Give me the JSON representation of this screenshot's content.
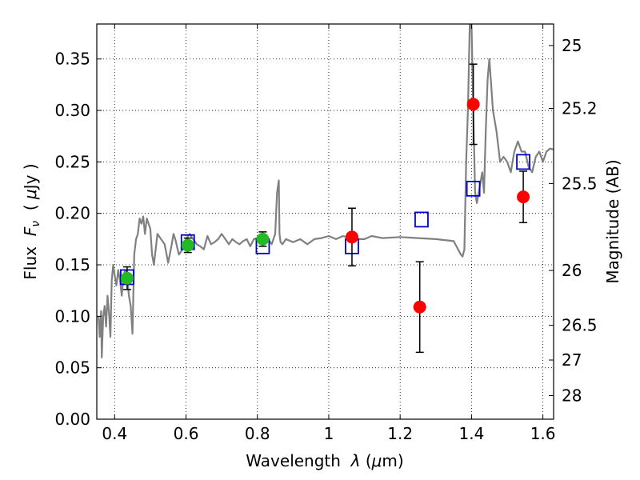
{
  "chart_data": {
    "type": "scatter",
    "title": "",
    "xlabel": "Wavelength  λ (μm)",
    "ylabel": "Flux  F_ν  ( μJy )",
    "ylabel_right": "Magnitude (AB)",
    "xlim": [
      0.35,
      1.63
    ],
    "ylim": [
      0.0,
      0.384
    ],
    "grid": true,
    "x_ticks": [
      0.4,
      0.6,
      0.8,
      1.0,
      1.2,
      1.4,
      1.6
    ],
    "x_tick_labels": [
      "0.4",
      "0.6",
      "0.8",
      "1",
      "1.2",
      "1.4",
      "1.6"
    ],
    "y_ticks": [
      0.0,
      0.05,
      0.1,
      0.15,
      0.2,
      0.25,
      0.3,
      0.35
    ],
    "y_tick_labels": [
      "0.00",
      "0.05",
      "0.10",
      "0.15",
      "0.20",
      "0.25",
      "0.30",
      "0.35"
    ],
    "right_ticks": [
      {
        "label": "25",
        "flux": 0.3631
      },
      {
        "label": "25.2",
        "flux": 0.302
      },
      {
        "label": "25.5",
        "flux": 0.229
      },
      {
        "label": "26",
        "flux": 0.1445
      },
      {
        "label": "26.5",
        "flux": 0.0912
      },
      {
        "label": "27",
        "flux": 0.0575
      },
      {
        "label": "28",
        "flux": 0.0229
      }
    ],
    "series": [
      {
        "kind": "line",
        "color": "#808080",
        "x": [
          0.355,
          0.358,
          0.362,
          0.364,
          0.368,
          0.372,
          0.376,
          0.38,
          0.385,
          0.388,
          0.392,
          0.396,
          0.4,
          0.405,
          0.41,
          0.415,
          0.42,
          0.425,
          0.43,
          0.435,
          0.44,
          0.445,
          0.45,
          0.455,
          0.46,
          0.465,
          0.47,
          0.475,
          0.48,
          0.485,
          0.49,
          0.495,
          0.5,
          0.505,
          0.51,
          0.52,
          0.53,
          0.54,
          0.55,
          0.56,
          0.565,
          0.57,
          0.58,
          0.59,
          0.6,
          0.61,
          0.62,
          0.63,
          0.64,
          0.65,
          0.66,
          0.67,
          0.68,
          0.69,
          0.7,
          0.71,
          0.72,
          0.73,
          0.74,
          0.75,
          0.76,
          0.77,
          0.78,
          0.79,
          0.8,
          0.81,
          0.82,
          0.83,
          0.84,
          0.85,
          0.855,
          0.86,
          0.862,
          0.865,
          0.87,
          0.88,
          0.9,
          0.92,
          0.94,
          0.96,
          0.98,
          1.0,
          1.02,
          1.04,
          1.06,
          1.08,
          1.1,
          1.12,
          1.15,
          1.2,
          1.25,
          1.3,
          1.35,
          1.37,
          1.375,
          1.38,
          1.385,
          1.39,
          1.395,
          1.4,
          1.405,
          1.41,
          1.415,
          1.42,
          1.425,
          1.43,
          1.435,
          1.44,
          1.445,
          1.45,
          1.46,
          1.47,
          1.48,
          1.49,
          1.5,
          1.51,
          1.52,
          1.53,
          1.54,
          1.55,
          1.56,
          1.57,
          1.58,
          1.59,
          1.6,
          1.61,
          1.62,
          1.63
        ],
        "y": [
          0.1,
          0.08,
          0.105,
          0.06,
          0.1,
          0.11,
          0.09,
          0.12,
          0.1,
          0.08,
          0.135,
          0.15,
          0.14,
          0.13,
          0.145,
          0.135,
          0.12,
          0.14,
          0.145,
          0.14,
          0.12,
          0.11,
          0.083,
          0.16,
          0.175,
          0.18,
          0.195,
          0.19,
          0.197,
          0.18,
          0.195,
          0.19,
          0.185,
          0.16,
          0.15,
          0.18,
          0.175,
          0.17,
          0.152,
          0.17,
          0.18,
          0.175,
          0.16,
          0.165,
          0.175,
          0.18,
          0.175,
          0.17,
          0.168,
          0.165,
          0.178,
          0.17,
          0.172,
          0.175,
          0.18,
          0.175,
          0.17,
          0.175,
          0.172,
          0.17,
          0.173,
          0.175,
          0.168,
          0.175,
          0.176,
          0.175,
          0.172,
          0.175,
          0.17,
          0.18,
          0.22,
          0.232,
          0.18,
          0.172,
          0.17,
          0.175,
          0.172,
          0.175,
          0.17,
          0.175,
          0.176,
          0.178,
          0.175,
          0.178,
          0.176,
          0.175,
          0.175,
          0.178,
          0.176,
          0.177,
          0.176,
          0.175,
          0.173,
          0.16,
          0.158,
          0.165,
          0.25,
          0.3,
          0.384,
          0.384,
          0.3,
          0.22,
          0.21,
          0.22,
          0.23,
          0.24,
          0.22,
          0.28,
          0.33,
          0.35,
          0.3,
          0.28,
          0.25,
          0.255,
          0.25,
          0.24,
          0.26,
          0.27,
          0.26,
          0.26,
          0.245,
          0.24,
          0.255,
          0.26,
          0.25,
          0.26,
          0.263,
          0.262
        ]
      },
      {
        "kind": "open-square",
        "color": "#0000cc",
        "x": [
          0.435,
          0.605,
          0.815,
          1.065,
          1.26,
          1.405,
          1.545
        ],
        "y": [
          0.138,
          0.172,
          0.168,
          0.168,
          0.194,
          0.224,
          0.25
        ]
      },
      {
        "kind": "filled-circle",
        "color": "#22bb22",
        "x": [
          0.435,
          0.605,
          0.815
        ],
        "y": [
          0.137,
          0.169,
          0.175
        ],
        "err": [
          0.011,
          0.007,
          0.007
        ]
      },
      {
        "kind": "filled-circle",
        "color": "#ff0000",
        "x": [
          1.065,
          1.255,
          1.405,
          1.545
        ],
        "y": [
          0.177,
          0.109,
          0.306,
          0.216
        ],
        "err": [
          0.028,
          0.044,
          0.039,
          0.025
        ]
      }
    ]
  }
}
